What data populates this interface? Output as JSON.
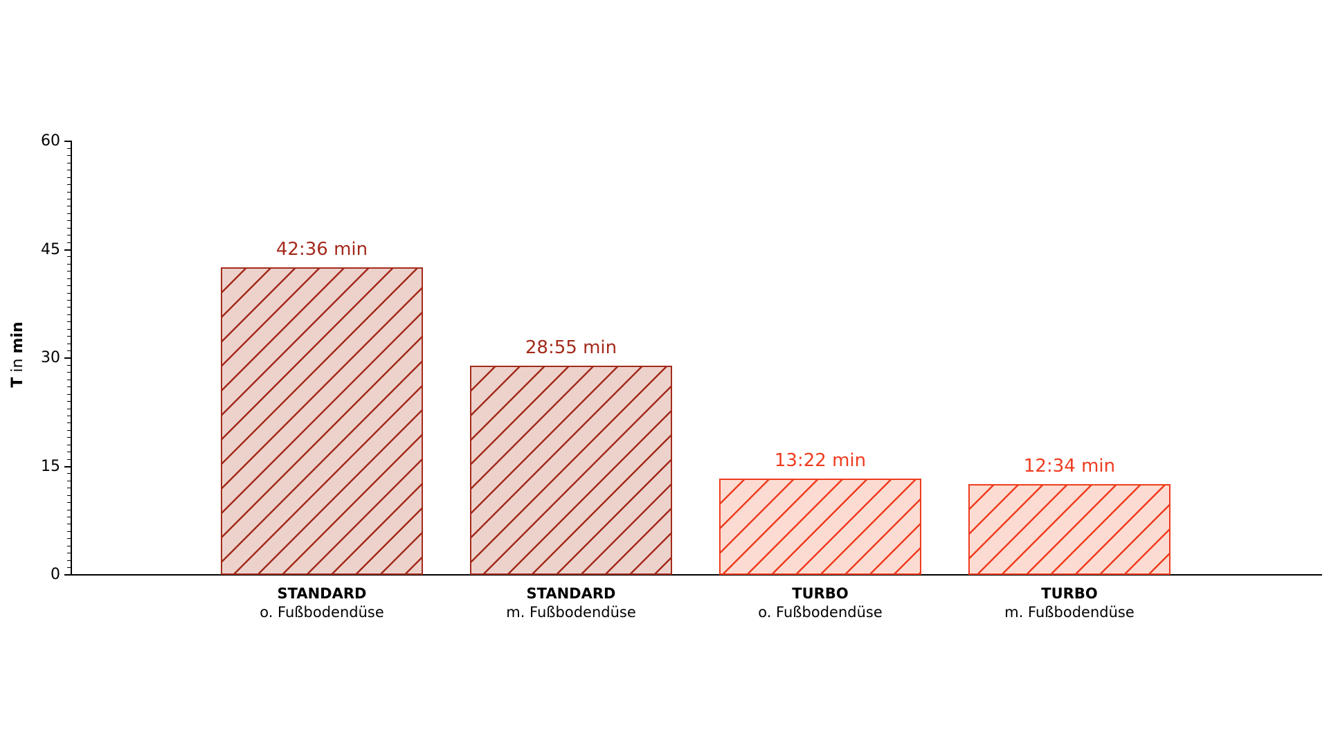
{
  "chart_data": {
    "type": "bar",
    "title": "",
    "ylabel_parts": [
      {
        "text": "T",
        "bold": true
      },
      {
        "text": " in ",
        "bold": false
      },
      {
        "text": "min",
        "bold": true
      }
    ],
    "ylabel": "T in min",
    "ylim": [
      0,
      60
    ],
    "yticks": [
      0,
      15,
      30,
      45,
      60
    ],
    "minor_tick_interval_min": 1,
    "grid": "off",
    "legend": "none",
    "categories": [
      {
        "line1": "STANDARD",
        "line2": "o. Fußbodendüse"
      },
      {
        "line1": "STANDARD",
        "line2": "m. Fußbodendüse"
      },
      {
        "line1": "TURBO",
        "line2": "o. Fußbodendüse"
      },
      {
        "line1": "TURBO",
        "line2": "m. Fußbodendüse"
      }
    ],
    "values_min": [
      42.6,
      28.9167,
      13.3667,
      12.5667
    ],
    "value_labels": [
      "42:36 min",
      "28:55 min",
      "13:22 min",
      "12:34 min"
    ],
    "hatch_pattern": "/",
    "bar_styles": [
      {
        "edge": "#A32A1B",
        "fill": "#EDD2CC"
      },
      {
        "edge": "#A32A1B",
        "fill": "#EDD2CC"
      },
      {
        "edge": "#EF3B1E",
        "fill": "#FCDCD2"
      },
      {
        "edge": "#EF3B1E",
        "fill": "#FCDCD2"
      }
    ],
    "axis_color": "#000000"
  },
  "layout_text": {}
}
